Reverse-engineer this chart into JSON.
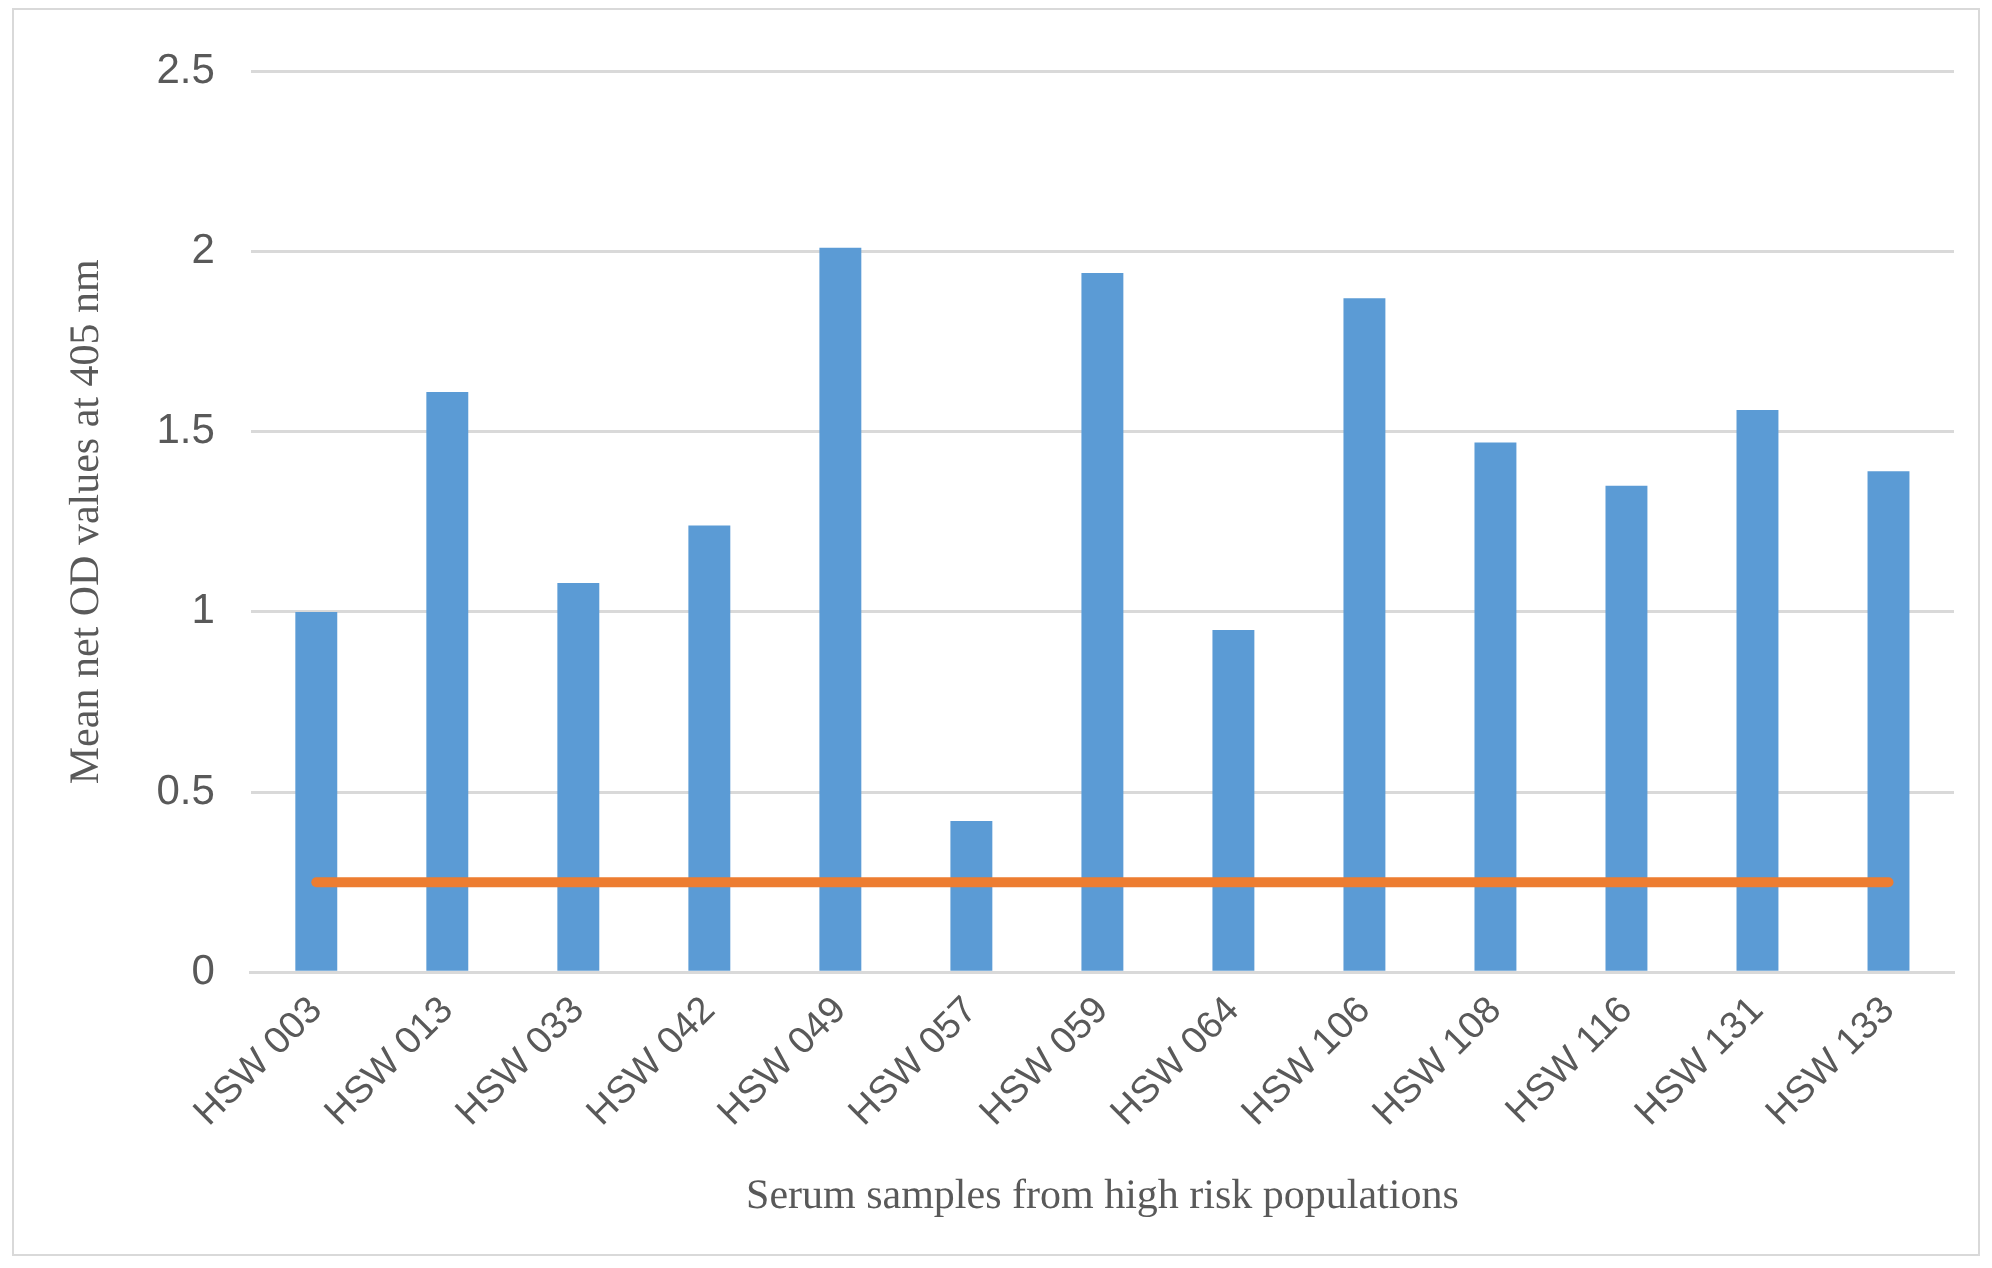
{
  "chart_data": {
    "type": "bar",
    "xlabel": "Serum samples from high risk populations",
    "ylabel": "Mean net OD values at 405 nm",
    "categories": [
      "HSW 003",
      "HSW 013",
      "HSW 033",
      "HSW 042",
      "HSW 049",
      "HSW 057",
      "HSW 059",
      "HSW 064",
      "HSW 106",
      "HSW 108",
      "HSW 116",
      "HSW 131",
      "HSW 133"
    ],
    "series": [
      {
        "type": "bar",
        "color": "#5b9bd5",
        "values": [
          1.0,
          1.61,
          1.08,
          1.24,
          2.01,
          0.42,
          1.94,
          0.95,
          1.87,
          1.47,
          1.35,
          1.56,
          1.39
        ]
      },
      {
        "type": "line",
        "color": "#ed7d31",
        "values": [
          0.25,
          0.25,
          0.25,
          0.25,
          0.25,
          0.25,
          0.25,
          0.25,
          0.25,
          0.25,
          0.25,
          0.25,
          0.25
        ]
      }
    ],
    "ylim": [
      0,
      2.5
    ],
    "yticks": [
      0,
      0.5,
      1,
      1.5,
      2,
      2.5
    ],
    "grid": "y",
    "legend": false,
    "marker": "none"
  }
}
